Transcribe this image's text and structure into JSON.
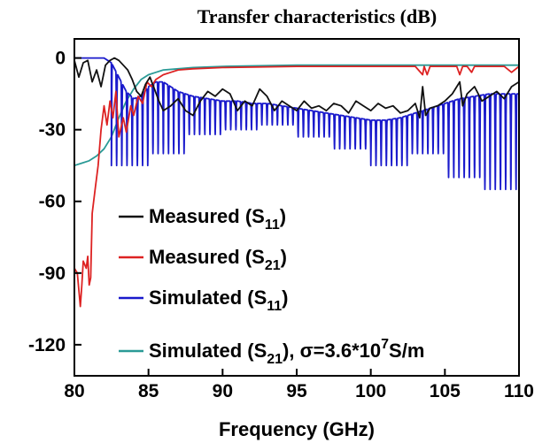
{
  "chart_data": {
    "type": "line",
    "title": "Transfer characteristics (dB)",
    "xlabel": "Frequency (GHz)",
    "ylabel": "",
    "xlim": [
      80,
      110
    ],
    "ylim": [
      -133,
      8
    ],
    "x_ticks": [
      "80",
      "85",
      "90",
      "95",
      "100",
      "105",
      "110"
    ],
    "y_ticks": [
      "0",
      "-30",
      "-60",
      "-90",
      "-120"
    ],
    "x_tick_values": [
      80,
      85,
      90,
      95,
      100,
      105,
      110
    ],
    "y_tick_values": [
      0,
      -30,
      -60,
      -90,
      -120
    ],
    "grid": false,
    "legend_position": "bottom-left",
    "series": [
      {
        "name": "Measured (S11)",
        "legend_main": "Measured (S",
        "legend_sub": "11",
        "legend_tail": ")",
        "color": "#111111",
        "x": [
          80.0,
          80.3,
          80.6,
          80.9,
          81.2,
          81.5,
          81.8,
          82.1,
          82.4,
          82.7,
          83.0,
          83.3,
          83.6,
          83.9,
          84.2,
          84.5,
          84.8,
          85.1,
          85.4,
          85.7,
          86.0,
          86.5,
          87.0,
          87.5,
          88.0,
          88.5,
          89.0,
          89.5,
          90.0,
          90.5,
          91.0,
          91.5,
          92.0,
          92.5,
          93.0,
          93.5,
          94.0,
          94.5,
          95.0,
          95.5,
          96.0,
          96.5,
          97.0,
          97.5,
          98.0,
          98.5,
          99.0,
          99.5,
          100.0,
          100.5,
          101.0,
          101.5,
          102.0,
          102.5,
          103.0,
          103.3,
          103.5,
          103.7,
          104.0,
          104.5,
          105.0,
          105.5,
          106.0,
          106.2,
          106.5,
          107.0,
          107.5,
          108.0,
          108.5,
          109.0,
          109.5,
          110.0
        ],
        "y": [
          -1,
          -8,
          -2,
          -1,
          -10,
          -5,
          -12,
          -3,
          -1,
          0,
          -1,
          -3,
          -5,
          -9,
          -14,
          -16,
          -11,
          -8,
          -13,
          -18,
          -22,
          -20,
          -17,
          -22,
          -24,
          -18,
          -14,
          -16,
          -13,
          -15,
          -22,
          -18,
          -20,
          -13,
          -16,
          -22,
          -18,
          -20,
          -22,
          -18,
          -21,
          -20,
          -22,
          -19,
          -20,
          -23,
          -18,
          -20,
          -22,
          -19,
          -21,
          -20,
          -23,
          -22,
          -19,
          -25,
          -12,
          -24,
          -21,
          -20,
          -18,
          -15,
          -10,
          -20,
          -15,
          -12,
          -18,
          -16,
          -14,
          -17,
          -12,
          -10
        ]
      },
      {
        "name": "Measured (S21)",
        "legend_main": "Measured (S",
        "legend_sub": "21",
        "legend_tail": ")",
        "color": "#dd2222",
        "x": [
          80.0,
          80.2,
          80.4,
          80.5,
          80.6,
          80.8,
          80.9,
          81.0,
          81.1,
          81.2,
          81.4,
          81.6,
          81.8,
          82.0,
          82.2,
          82.4,
          82.6,
          82.8,
          83.0,
          83.3,
          83.5,
          83.8,
          84.0,
          84.3,
          84.6,
          84.9,
          85.2,
          85.5,
          86.0,
          86.5,
          87.0,
          88.0,
          90.0,
          95.0,
          100.0,
          103.0,
          103.5,
          103.6,
          103.8,
          104.0,
          104.5,
          105.0,
          105.8,
          106.0,
          106.2,
          106.5,
          106.8,
          107.0,
          108.0,
          109.0,
          109.5,
          110.0
        ],
        "y": [
          -88,
          -90,
          -104,
          -95,
          -85,
          -88,
          -83,
          -95,
          -92,
          -65,
          -55,
          -45,
          -30,
          -20,
          -28,
          -18,
          -25,
          -14,
          -33,
          -25,
          -31,
          -20,
          -24,
          -16,
          -19,
          -10,
          -12,
          -9,
          -7,
          -6,
          -5,
          -4.5,
          -4,
          -3.5,
          -3.5,
          -3.5,
          -7,
          -3.5,
          -7,
          -3.5,
          -3.5,
          -3.5,
          -3.5,
          -7,
          -3.5,
          -3.5,
          -6,
          -3.5,
          -3.5,
          -3.5,
          -6,
          -3.5
        ]
      },
      {
        "name": "Simulated (S11)",
        "legend_main": "Simulated (S",
        "legend_sub": "11",
        "legend_tail": ")",
        "color": "#1a1acc",
        "x": [
          80.0,
          81.0,
          82.0,
          82.5,
          83.0,
          83.5,
          84.0,
          84.5,
          85.0,
          85.5,
          86.0,
          87.0,
          88.0,
          89.0,
          90.0,
          91.0,
          92.0,
          93.0,
          94.0,
          95.0,
          96.0,
          97.0,
          98.0,
          99.0,
          100.0,
          101.0,
          102.0,
          103.0,
          104.0,
          105.0,
          106.0,
          107.0,
          108.0,
          109.0,
          110.0
        ],
        "y": [
          0,
          0,
          0,
          -2,
          -8,
          -14,
          -17,
          -16,
          -12,
          -10,
          -10,
          -14,
          -16,
          -17,
          -18,
          -18,
          -19,
          -19,
          -20,
          -21,
          -22,
          -23,
          -24,
          -25,
          -26,
          -26,
          -25,
          -23,
          -21,
          -19,
          -17,
          -16,
          -15,
          -15,
          -15
        ],
        "ripple_start": 82.5,
        "ripple_period": 0.35,
        "ripple_depth": 30,
        "ripple_valley": [
          -50,
          -45,
          -40,
          -32,
          -30,
          -28,
          -33,
          -38,
          -45,
          -40,
          -50,
          -55
        ]
      },
      {
        "name": "Simulated (S21), σ=3.6*10^7S/m",
        "legend_main": "Simulated (S",
        "legend_sub": "21",
        "legend_tail": "), σ=3.6*10",
        "legend_sup": "7",
        "legend_end": "S/m",
        "color": "#2a9a96",
        "x": [
          80.0,
          80.5,
          81.0,
          81.5,
          82.0,
          82.5,
          83.0,
          83.5,
          84.0,
          84.5,
          85.0,
          85.5,
          86.0,
          87.0,
          88.0,
          90.0,
          95.0,
          100.0,
          105.0,
          110.0
        ],
        "y": [
          -45,
          -44,
          -43,
          -41,
          -38,
          -33,
          -25,
          -18,
          -13,
          -9,
          -7,
          -6,
          -5,
          -4.5,
          -4,
          -3.5,
          -3,
          -3,
          -3,
          -3
        ]
      }
    ]
  }
}
